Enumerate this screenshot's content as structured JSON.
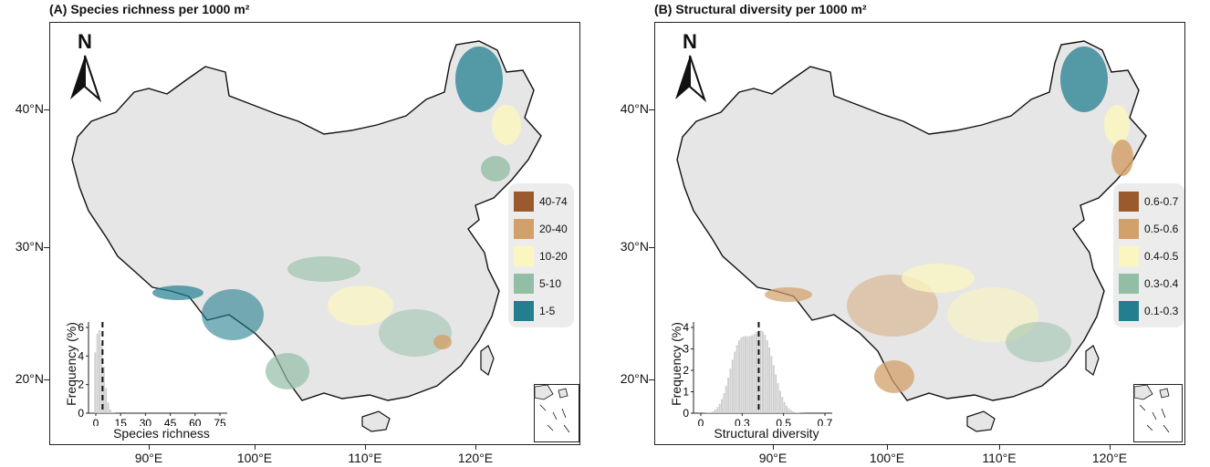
{
  "panels": [
    {
      "id": "a",
      "title": "(A) Species richness per 1000 m²",
      "north_label": "N",
      "lat_labels": [
        "40°N",
        "30°N",
        "20°N"
      ],
      "lon_labels": [
        "90°E",
        "100°E",
        "110°E",
        "120°E"
      ],
      "legend": [
        {
          "label": "40-74",
          "color": "#9a5a2e"
        },
        {
          "label": "20-40",
          "color": "#d2a06a"
        },
        {
          "label": "10-20",
          "color": "#fbf6c0"
        },
        {
          "label": "5-10",
          "color": "#93bea6"
        },
        {
          "label": "1-5",
          "color": "#237f90"
        }
      ],
      "histogram": {
        "ylabel": "Frequency (%)",
        "xlabel": "Species richness",
        "yticks": [
          "0",
          "2",
          "4",
          "6"
        ],
        "xticks": [
          "0",
          "15",
          "30",
          "45",
          "60",
          "75"
        ],
        "mean_value": 5
      }
    },
    {
      "id": "b",
      "title": "(B) Structural diversity per 1000 m²",
      "north_label": "N",
      "lat_labels": [
        "40°N",
        "30°N",
        "20°N"
      ],
      "lon_labels": [
        "90°E",
        "100°E",
        "110°E",
        "120°E"
      ],
      "legend": [
        {
          "label": "0.6-0.7",
          "color": "#9a5a2e"
        },
        {
          "label": "0.5-0.6",
          "color": "#d2a06a"
        },
        {
          "label": "0.4-0.5",
          "color": "#fbf6c0"
        },
        {
          "label": "0.3-0.4",
          "color": "#93bea6"
        },
        {
          "label": "0.1-0.3",
          "color": "#237f90"
        }
      ],
      "histogram": {
        "ylabel": "Frequency (%)",
        "xlabel": "Structural diversity",
        "yticks": [
          "0",
          "1",
          "2",
          "3",
          "4"
        ],
        "xticks": [
          "0",
          "0.3",
          "0.5",
          "0.7"
        ],
        "mean_value": 0.38
      }
    }
  ]
}
